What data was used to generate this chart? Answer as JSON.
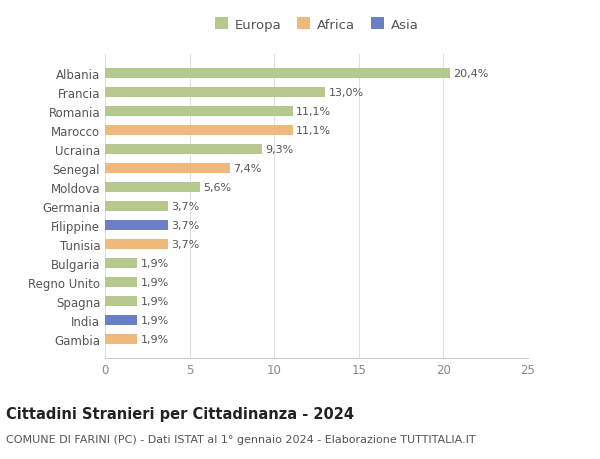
{
  "categories": [
    "Albania",
    "Francia",
    "Romania",
    "Marocco",
    "Ucraina",
    "Senegal",
    "Moldova",
    "Germania",
    "Filippine",
    "Tunisia",
    "Bulgaria",
    "Regno Unito",
    "Spagna",
    "India",
    "Gambia"
  ],
  "values": [
    20.4,
    13.0,
    11.1,
    11.1,
    9.3,
    7.4,
    5.6,
    3.7,
    3.7,
    3.7,
    1.9,
    1.9,
    1.9,
    1.9,
    1.9
  ],
  "labels": [
    "20,4%",
    "13,0%",
    "11,1%",
    "11,1%",
    "9,3%",
    "7,4%",
    "5,6%",
    "3,7%",
    "3,7%",
    "3,7%",
    "1,9%",
    "1,9%",
    "1,9%",
    "1,9%",
    "1,9%"
  ],
  "continents": [
    "Europa",
    "Europa",
    "Europa",
    "Africa",
    "Europa",
    "Africa",
    "Europa",
    "Europa",
    "Asia",
    "Africa",
    "Europa",
    "Europa",
    "Europa",
    "Asia",
    "Africa"
  ],
  "colors": {
    "Europa": "#b5c98e",
    "Africa": "#f0b87a",
    "Asia": "#6b7fc4"
  },
  "xlim": [
    0,
    25
  ],
  "xticks": [
    0,
    5,
    10,
    15,
    20,
    25
  ],
  "title": "Cittadini Stranieri per Cittadinanza - 2024",
  "subtitle": "COMUNE DI FARINI (PC) - Dati ISTAT al 1° gennaio 2024 - Elaborazione TUTTITALIA.IT",
  "background_color": "#ffffff",
  "bar_height": 0.55,
  "label_fontsize": 8,
  "title_fontsize": 10.5,
  "subtitle_fontsize": 8,
  "ytick_fontsize": 8.5,
  "xtick_fontsize": 8.5,
  "legend_fontsize": 9.5
}
